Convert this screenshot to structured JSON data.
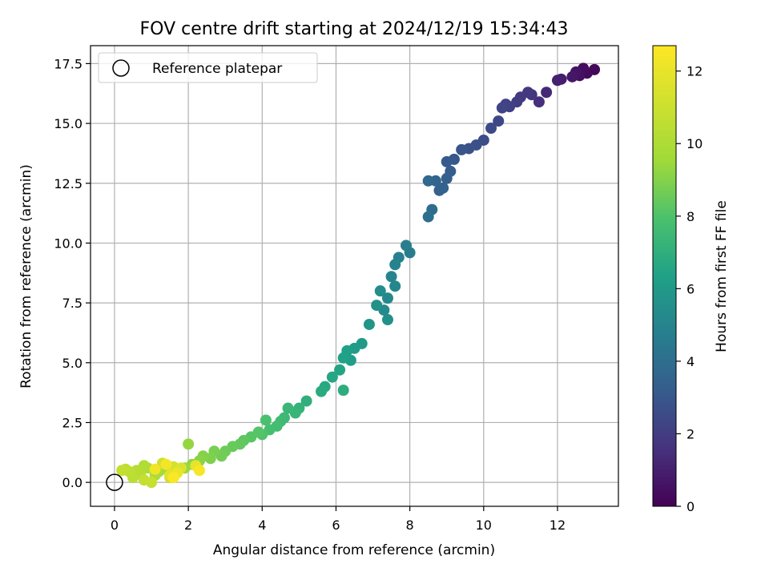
{
  "chart_data": {
    "type": "scatter",
    "title": "FOV centre drift starting at 2024/12/19 15:34:43",
    "xlabel": "Angular distance from reference (arcmin)",
    "ylabel": "Rotation from reference (arcmin)",
    "xlim": [
      -0.65,
      13.65
    ],
    "ylim": [
      -1.0,
      18.25
    ],
    "x_ticks": [
      0,
      2,
      4,
      6,
      8,
      10,
      12
    ],
    "x_tick_labels": [
      "0",
      "2",
      "4",
      "6",
      "8",
      "10",
      "12"
    ],
    "y_ticks": [
      0.0,
      2.5,
      5.0,
      7.5,
      10.0,
      12.5,
      15.0,
      17.5
    ],
    "y_tick_labels": [
      "0.0",
      "2.5",
      "5.0",
      "7.5",
      "10.0",
      "12.5",
      "15.0",
      "17.5"
    ],
    "grid": true,
    "legend": {
      "placement": "upper-left",
      "entries": [
        "Reference platepar"
      ]
    },
    "colorbar": {
      "label": "Hours from first FF file",
      "range": [
        0,
        12.7
      ],
      "ticks": [
        0,
        2,
        4,
        6,
        8,
        10,
        12
      ],
      "tick_labels": [
        "0",
        "2",
        "4",
        "6",
        "8",
        "10",
        "12"
      ],
      "colormap": "viridis"
    },
    "reference_point": {
      "x": 0,
      "y": 0,
      "label": "Reference platepar"
    },
    "series": [
      {
        "columns": [
          "x",
          "y",
          "hours"
        ],
        "points": [
          [
            13.0,
            17.25,
            0.2
          ],
          [
            12.8,
            17.1,
            0.3
          ],
          [
            12.7,
            17.3,
            0.4
          ],
          [
            12.6,
            17.0,
            0.5
          ],
          [
            12.5,
            17.15,
            0.6
          ],
          [
            12.4,
            16.95,
            0.7
          ],
          [
            12.1,
            16.85,
            0.9
          ],
          [
            12.0,
            16.8,
            1.0
          ],
          [
            11.7,
            16.3,
            1.3
          ],
          [
            11.5,
            15.9,
            1.5
          ],
          [
            11.3,
            16.2,
            1.7
          ],
          [
            11.2,
            16.3,
            1.8
          ],
          [
            11.0,
            16.1,
            1.9
          ],
          [
            10.9,
            15.9,
            2.0
          ],
          [
            10.7,
            15.7,
            2.1
          ],
          [
            10.6,
            15.8,
            2.2
          ],
          [
            10.5,
            15.65,
            2.3
          ],
          [
            10.4,
            15.1,
            2.4
          ],
          [
            10.2,
            14.8,
            2.5
          ],
          [
            10.0,
            14.3,
            2.6
          ],
          [
            9.8,
            14.1,
            2.7
          ],
          [
            9.6,
            13.95,
            2.8
          ],
          [
            9.4,
            13.9,
            2.9
          ],
          [
            9.2,
            13.5,
            3.0
          ],
          [
            9.0,
            13.4,
            3.1
          ],
          [
            9.1,
            13.0,
            3.2
          ],
          [
            9.0,
            12.7,
            3.3
          ],
          [
            8.9,
            12.3,
            3.4
          ],
          [
            8.8,
            12.2,
            3.5
          ],
          [
            8.7,
            12.6,
            3.6
          ],
          [
            8.5,
            12.6,
            3.7
          ],
          [
            8.6,
            11.4,
            3.9
          ],
          [
            8.5,
            11.1,
            4.0
          ],
          [
            8.0,
            9.6,
            4.6
          ],
          [
            7.9,
            9.9,
            4.7
          ],
          [
            7.7,
            9.4,
            4.8
          ],
          [
            7.6,
            9.1,
            4.9
          ],
          [
            7.5,
            8.6,
            5.0
          ],
          [
            7.6,
            8.2,
            5.1
          ],
          [
            7.4,
            7.7,
            5.2
          ],
          [
            7.3,
            7.2,
            5.3
          ],
          [
            7.2,
            8.0,
            5.4
          ],
          [
            7.4,
            6.8,
            5.5
          ],
          [
            7.1,
            7.4,
            5.6
          ],
          [
            6.9,
            6.6,
            5.8
          ],
          [
            6.7,
            5.8,
            6.0
          ],
          [
            6.5,
            5.6,
            6.1
          ],
          [
            6.4,
            5.1,
            6.2
          ],
          [
            6.3,
            5.5,
            6.3
          ],
          [
            6.2,
            5.2,
            6.4
          ],
          [
            6.1,
            4.7,
            6.5
          ],
          [
            5.9,
            4.4,
            6.6
          ],
          [
            5.7,
            4.0,
            6.7
          ],
          [
            5.6,
            3.8,
            6.8
          ],
          [
            6.2,
            3.85,
            6.9
          ],
          [
            5.2,
            3.4,
            7.0
          ],
          [
            5.0,
            3.1,
            7.2
          ],
          [
            4.9,
            2.9,
            7.3
          ],
          [
            4.7,
            3.1,
            7.4
          ],
          [
            4.6,
            2.7,
            7.5
          ],
          [
            4.5,
            2.55,
            7.6
          ],
          [
            4.4,
            2.35,
            7.7
          ],
          [
            4.2,
            2.2,
            7.8
          ],
          [
            4.1,
            2.6,
            7.9
          ],
          [
            4.0,
            2.0,
            8.0
          ],
          [
            3.9,
            2.1,
            8.1
          ],
          [
            3.7,
            1.9,
            8.2
          ],
          [
            3.5,
            1.75,
            8.3
          ],
          [
            3.4,
            1.6,
            8.4
          ],
          [
            3.2,
            1.5,
            8.5
          ],
          [
            3.0,
            1.3,
            8.6
          ],
          [
            2.9,
            1.1,
            8.7
          ],
          [
            2.7,
            1.3,
            8.8
          ],
          [
            2.6,
            1.0,
            8.9
          ],
          [
            2.4,
            1.1,
            9.0
          ],
          [
            2.3,
            0.9,
            9.1
          ],
          [
            2.1,
            0.75,
            9.2
          ],
          [
            2.0,
            1.6,
            9.3
          ],
          [
            1.9,
            0.6,
            9.4
          ],
          [
            1.7,
            0.5,
            9.5
          ],
          [
            1.6,
            0.4,
            9.6
          ],
          [
            1.4,
            0.55,
            9.7
          ],
          [
            1.2,
            0.45,
            9.8
          ],
          [
            1.1,
            0.3,
            9.9
          ],
          [
            0.9,
            0.6,
            10.0
          ],
          [
            0.8,
            0.7,
            10.1
          ],
          [
            0.7,
            0.35,
            10.2
          ],
          [
            0.6,
            0.5,
            10.3
          ],
          [
            0.5,
            0.2,
            10.4
          ],
          [
            0.4,
            0.45,
            10.5
          ],
          [
            0.3,
            0.55,
            10.6
          ],
          [
            0.2,
            0.5,
            10.7
          ],
          [
            0.8,
            0.1,
            10.8
          ],
          [
            1.0,
            0.0,
            10.9
          ],
          [
            1.5,
            0.2,
            11.0
          ],
          [
            1.3,
            0.8,
            11.1
          ],
          [
            1.6,
            0.65,
            11.3
          ],
          [
            1.8,
            0.6,
            11.5
          ],
          [
            1.5,
            0.3,
            11.7
          ],
          [
            2.2,
            0.7,
            11.9
          ],
          [
            1.7,
            0.4,
            12.1
          ],
          [
            1.1,
            0.55,
            12.3
          ],
          [
            1.4,
            0.75,
            12.4
          ],
          [
            2.3,
            0.5,
            12.5
          ],
          [
            1.6,
            0.2,
            12.6
          ]
        ]
      }
    ]
  }
}
